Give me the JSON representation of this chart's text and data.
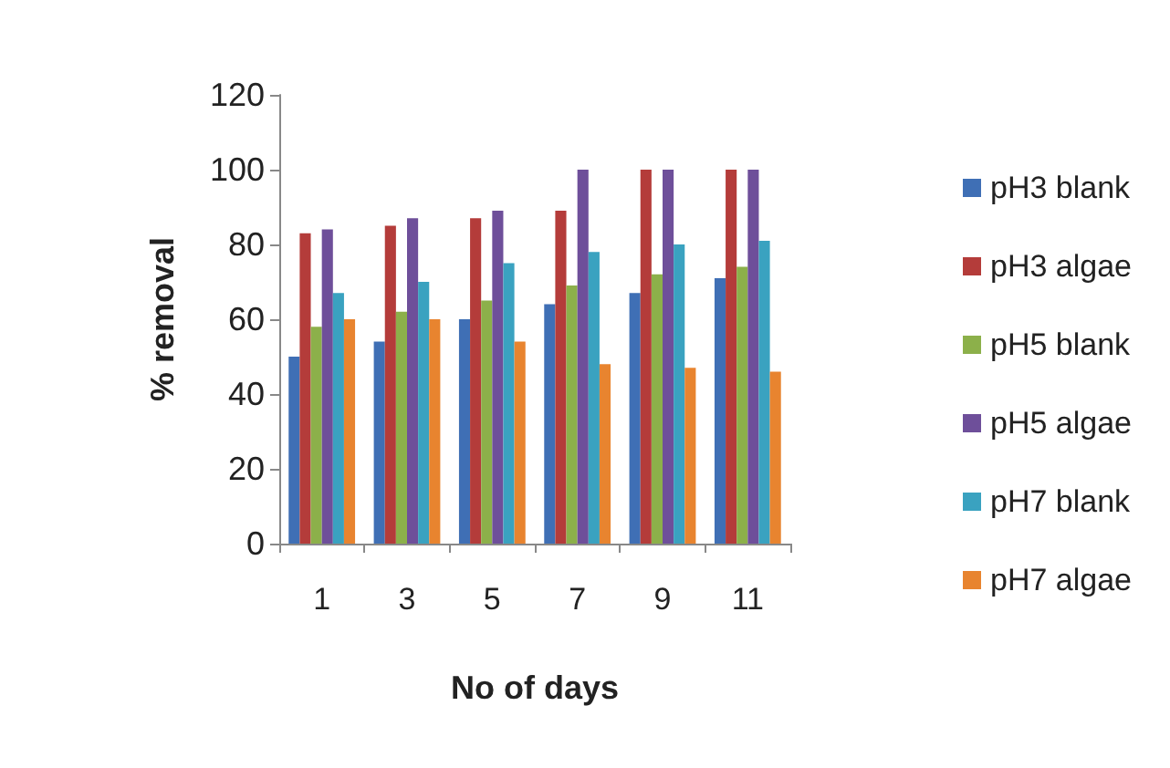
{
  "chart_data": {
    "type": "bar",
    "xlabel": "No of days",
    "ylabel": "% removal",
    "categories": [
      "1",
      "3",
      "5",
      "7",
      "9",
      "11"
    ],
    "series": [
      {
        "name": "pH3 blank",
        "color": "#3f6fb5",
        "values": [
          50,
          54,
          60,
          64,
          67,
          71
        ]
      },
      {
        "name": "pH3 algae",
        "color": "#b43c3a",
        "values": [
          83,
          85,
          87,
          89,
          100,
          100
        ]
      },
      {
        "name": "pH5 blank",
        "color": "#8cb04a",
        "values": [
          58,
          62,
          65,
          69,
          72,
          74
        ]
      },
      {
        "name": "pH5 algae",
        "color": "#6e4f9a",
        "values": [
          84,
          87,
          89,
          100,
          100,
          100
        ]
      },
      {
        "name": "pH7 blank",
        "color": "#3aa2c0",
        "values": [
          67,
          70,
          75,
          78,
          80,
          81
        ]
      },
      {
        "name": "pH7 algae",
        "color": "#e8842f",
        "values": [
          60,
          60,
          54,
          48,
          47,
          46
        ]
      }
    ],
    "ylim": [
      0,
      120
    ],
    "yticks": [
      0,
      20,
      40,
      60,
      80,
      100,
      120
    ],
    "grid": false,
    "legend": "right"
  }
}
